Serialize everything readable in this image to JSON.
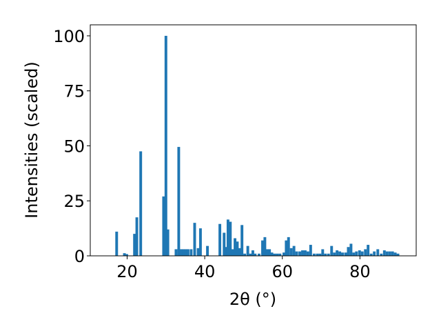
{
  "chart_data": {
    "type": "bar",
    "xlabel": "2θ (°)",
    "ylabel": "Intensities (scaled)",
    "xlim": [
      10.5,
      94.5
    ],
    "ylim": [
      0,
      105
    ],
    "x_ticks": [
      20,
      40,
      60,
      80
    ],
    "y_ticks": [
      0,
      25,
      50,
      75,
      100
    ],
    "grid": false,
    "bar_color": "#1f77b4",
    "bar_width": 0.7,
    "x": [
      17.3,
      19.3,
      19.9,
      21.9,
      22.5,
      23.5,
      29.4,
      30.0,
      30.5,
      32.6,
      33.3,
      33.9,
      34.5,
      35.1,
      35.7,
      36.5,
      37.4,
      38.3,
      38.9,
      40.7,
      43.9,
      45.0,
      45.5,
      46.0,
      46.6,
      47.2,
      47.8,
      48.4,
      49.0,
      49.6,
      50.3,
      51.1,
      51.8,
      52.4,
      53.0,
      54.0,
      54.9,
      55.5,
      56.1,
      56.7,
      57.3,
      58.0,
      58.7,
      59.4,
      60.4,
      61.0,
      61.6,
      62.3,
      63.0,
      63.7,
      64.5,
      65.2,
      65.9,
      66.6,
      67.3,
      68.2,
      69.0,
      69.7,
      70.4,
      71.1,
      71.9,
      72.7,
      73.4,
      74.1,
      74.8,
      75.5,
      76.3,
      77.0,
      77.7,
      78.4,
      79.1,
      79.9,
      80.6,
      81.4,
      82.1,
      82.9,
      83.7,
      84.6,
      85.5,
      86.3,
      87.0,
      87.7,
      88.4,
      89.1,
      89.8
    ],
    "values": [
      11,
      1.2,
      0.8,
      10,
      17.5,
      47.5,
      27,
      100,
      12,
      3,
      49.5,
      3,
      3,
      3,
      3,
      3,
      15,
      3.5,
      12.5,
      4.5,
      14.5,
      10.5,
      4,
      16.5,
      15.5,
      3,
      8,
      6.5,
      3.5,
      14,
      1,
      4.5,
      1,
      2.5,
      1,
      1,
      7,
      8.5,
      3,
      3,
      1.5,
      1,
      1,
      1,
      1.5,
      7,
      8.5,
      3.5,
      4.5,
      2,
      2,
      2.5,
      2.5,
      2,
      5,
      1,
      1,
      1,
      3,
      1,
      1,
      4.5,
      1.5,
      2.5,
      2,
      1.5,
      1.5,
      4,
      5.5,
      1.5,
      2,
      2.5,
      2,
      3,
      5,
      1,
      2,
      3,
      1,
      2.5,
      2,
      2,
      2,
      1.5,
      1
    ]
  }
}
